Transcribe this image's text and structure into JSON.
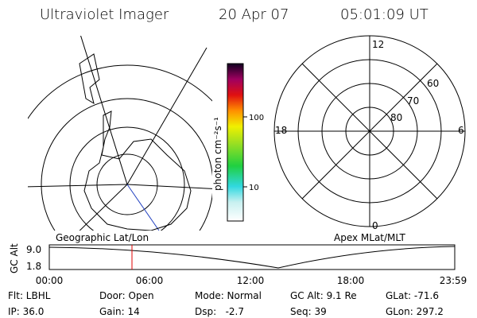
{
  "header": {
    "instrument": "Ultraviolet Imager",
    "date": "20 Apr 07",
    "time": "05:01:09 UT"
  },
  "colorbar": {
    "label": "photon cm⁻²s⁻¹",
    "ticks": [
      "100",
      "10"
    ]
  },
  "polar_plot": {
    "mlt_labels": [
      "12",
      "18",
      "6",
      "0"
    ],
    "lat_labels": [
      "60",
      "70",
      "80"
    ]
  },
  "timeline": {
    "left_title": "Geographic Lat/Lon",
    "right_title": "Apex MLat/MLT",
    "y_label": "GC Alt",
    "y_ticks": [
      "9.0",
      "1.8"
    ],
    "x_ticks": [
      "00:00",
      "06:00",
      "12:00",
      "18:00",
      "23:59"
    ]
  },
  "footer": {
    "rows": [
      [
        "Flt: LBHL",
        "Door: Open",
        "Mode: Normal",
        "GC Alt: 9.1 Re",
        "GLat: -71.6"
      ],
      [
        "IP: 36.0",
        "Gain: 14",
        "Dsp:   -2.7",
        "Seq: 39",
        "GLon: 297.2"
      ]
    ]
  }
}
